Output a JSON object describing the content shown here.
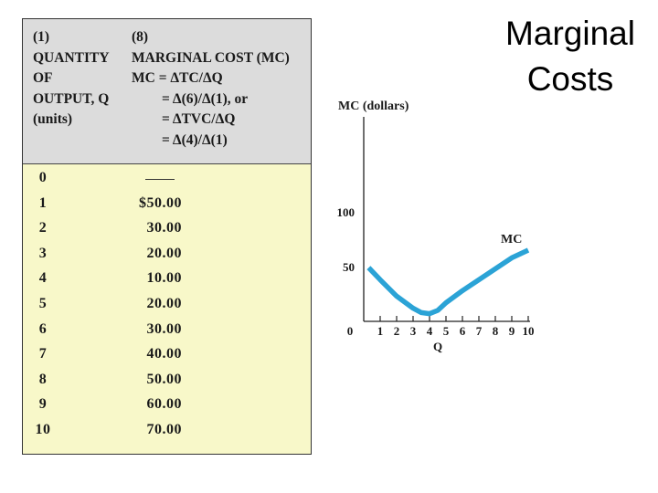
{
  "slide": {
    "title_line1": "Marginal",
    "title_line2": "Costs"
  },
  "table": {
    "col1_header": [
      "(1)",
      "QUANTITY",
      "OF",
      "OUTPUT, Q",
      "(units)"
    ],
    "col8_header": [
      "(8)",
      "MARGINAL COST (MC)",
      "MC = ΔTC/ΔQ",
      "= Δ(6)/Δ(1), or",
      "= ΔTVC/ΔQ",
      "= Δ(4)/Δ(1)"
    ],
    "rows": [
      {
        "q": "0",
        "mc": ""
      },
      {
        "q": "1",
        "mc": "$50.00"
      },
      {
        "q": "2",
        "mc": "30.00"
      },
      {
        "q": "3",
        "mc": "20.00"
      },
      {
        "q": "4",
        "mc": "10.00"
      },
      {
        "q": "5",
        "mc": "20.00"
      },
      {
        "q": "6",
        "mc": "30.00"
      },
      {
        "q": "7",
        "mc": "40.00"
      },
      {
        "q": "8",
        "mc": "50.00"
      },
      {
        "q": "9",
        "mc": "60.00"
      },
      {
        "q": "10",
        "mc": "70.00"
      }
    ]
  },
  "chart_data": {
    "type": "line",
    "ylabel": "MC (dollars)",
    "xlabel": "Q",
    "x_ticks": [
      "0",
      "1",
      "2",
      "3",
      "4",
      "5",
      "6",
      "7",
      "8",
      "9",
      "10"
    ],
    "y_ticks": [
      "100",
      "50"
    ],
    "xlim": [
      0,
      10
    ],
    "ylim": [
      0,
      100
    ],
    "series": [
      {
        "name": "MC",
        "color": "#2ba3d6",
        "x": [
          0.3,
          1,
          2,
          3,
          3.5,
          4,
          4.5,
          5,
          6,
          7,
          8,
          9,
          10
        ],
        "y": [
          49,
          38,
          23,
          12,
          8,
          7,
          10,
          17,
          28,
          38,
          48,
          58,
          65
        ]
      }
    ]
  }
}
